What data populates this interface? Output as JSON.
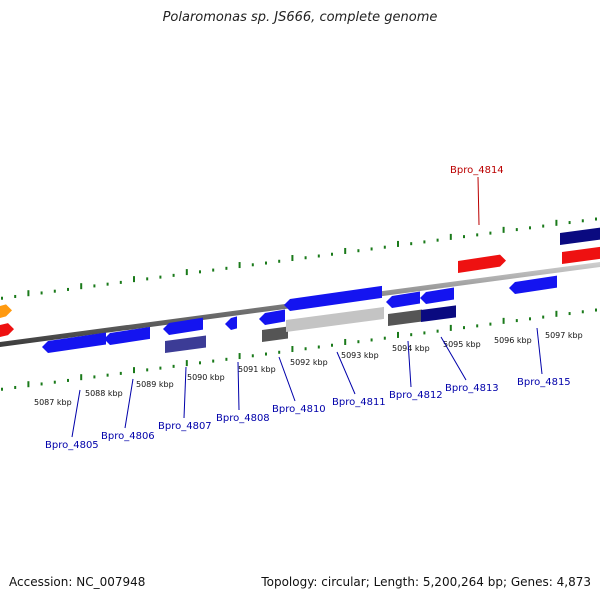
{
  "title": "Polaromonas sp. JS666, complete genome",
  "footer": {
    "accession_label": "Accession:",
    "accession": "NC_007948",
    "topology_label": "Topology:",
    "topology": "circular",
    "length_label": "Length:",
    "length": "5,200,264 bp",
    "genes_label": "Genes:",
    "genes": "4,873"
  },
  "colors": {
    "forward": "#1414f0",
    "reverse": "#0000e6",
    "navy": "#0a0a80",
    "purple": "#3c3c96",
    "red": "#ee1111",
    "orange": "#ff9a10",
    "dark_gray": "#555555",
    "light_gray": "#c4c4c4",
    "tick": "#1a7a1a",
    "label_blue": "#0000aa",
    "label_red": "#bb0000"
  },
  "ticks": [
    "5087 kbp",
    "5088 kbp",
    "5089 kbp",
    "5090 kbp",
    "5091 kbp",
    "5092 kbp",
    "5093 kbp",
    "5094 kbp",
    "5095 kbp",
    "5096 kbp",
    "5097 kbp"
  ],
  "gene_labels": [
    {
      "name": "Bpro_4805",
      "color": "blue"
    },
    {
      "name": "Bpro_4806",
      "color": "blue"
    },
    {
      "name": "Bpro_4807",
      "color": "blue"
    },
    {
      "name": "Bpro_4808",
      "color": "blue"
    },
    {
      "name": "Bpro_4810",
      "color": "blue"
    },
    {
      "name": "Bpro_4811",
      "color": "blue"
    },
    {
      "name": "Bpro_4812",
      "color": "blue"
    },
    {
      "name": "Bpro_4813",
      "color": "blue"
    },
    {
      "name": "Bpro_4815",
      "color": "blue"
    },
    {
      "name": "Bpro_4814",
      "color": "red"
    }
  ]
}
